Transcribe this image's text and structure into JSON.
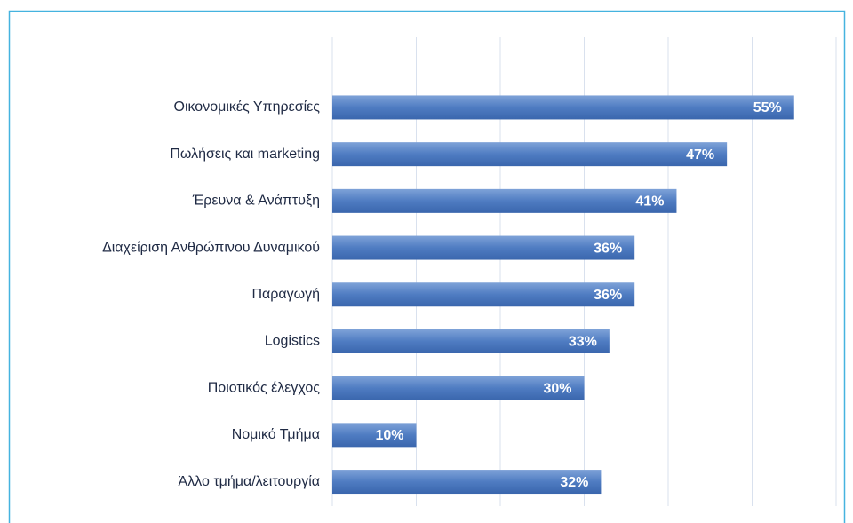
{
  "chart_data": {
    "type": "bar",
    "orientation": "horizontal",
    "categories": [
      "Οικονομικές Υπηρεσίες",
      "Πωλήσεις και marketing",
      "Έρευνα & Ανάπτυξη",
      "Διαχείριση Ανθρώπινου Δυναμικού",
      "Παραγωγή",
      "Logistics",
      "Ποιοτικός έλεγχος",
      "Νομικό Τμήμα",
      "Άλλο τμήμα/λειτουργία"
    ],
    "values": [
      55,
      47,
      41,
      36,
      36,
      33,
      30,
      10,
      32
    ],
    "value_labels": [
      "55%",
      "47%",
      "41%",
      "36%",
      "36%",
      "33%",
      "30%",
      "10%",
      "32%"
    ],
    "color": "#4a76bb",
    "xlim": [
      0,
      60
    ],
    "xticks": [
      0,
      10,
      20,
      30,
      40,
      50,
      60
    ],
    "grid": true
  }
}
